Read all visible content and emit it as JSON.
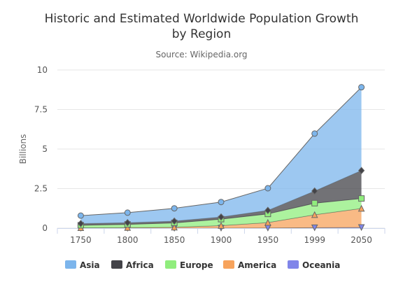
{
  "chart_data": {
    "type": "area",
    "stacked": true,
    "title": "Historic and Estimated Worldwide Population Growth by Region",
    "title_lines": [
      "Historic and Estimated Worldwide Population Growth",
      "by Region"
    ],
    "subtitle": "Source: Wikipedia.org",
    "ylabel": "Billions",
    "ylim": [
      0,
      10
    ],
    "yticks": [
      0,
      2.5,
      5,
      7.5,
      10
    ],
    "ytick_labels": [
      "0",
      "2.5",
      "5",
      "7.5",
      "10"
    ],
    "categories": [
      "1750",
      "1800",
      "1850",
      "1900",
      "1950",
      "1999",
      "2050"
    ],
    "grid": true,
    "legend_position": "bottom-left",
    "series": [
      {
        "name": "Asia",
        "values": [
          0.502,
          0.635,
          0.809,
          0.947,
          1.402,
          3.634,
          5.268
        ],
        "color": "#7cb5ec",
        "marker": "circle"
      },
      {
        "name": "Africa",
        "values": [
          0.106,
          0.107,
          0.111,
          0.133,
          0.221,
          0.767,
          1.766
        ],
        "color": "#434348",
        "marker": "diamond"
      },
      {
        "name": "Europe",
        "values": [
          0.163,
          0.203,
          0.276,
          0.408,
          0.547,
          0.729,
          0.628
        ],
        "color": "#90ed7d",
        "marker": "square"
      },
      {
        "name": "America",
        "values": [
          0.018,
          0.031,
          0.054,
          0.156,
          0.339,
          0.818,
          1.201
        ],
        "color": "#f7a35c",
        "marker": "triangle"
      },
      {
        "name": "Oceania",
        "values": [
          0.002,
          0.002,
          0.002,
          0.006,
          0.013,
          0.03,
          0.046
        ],
        "color": "#8085e9",
        "marker": "triangle-down"
      }
    ]
  }
}
